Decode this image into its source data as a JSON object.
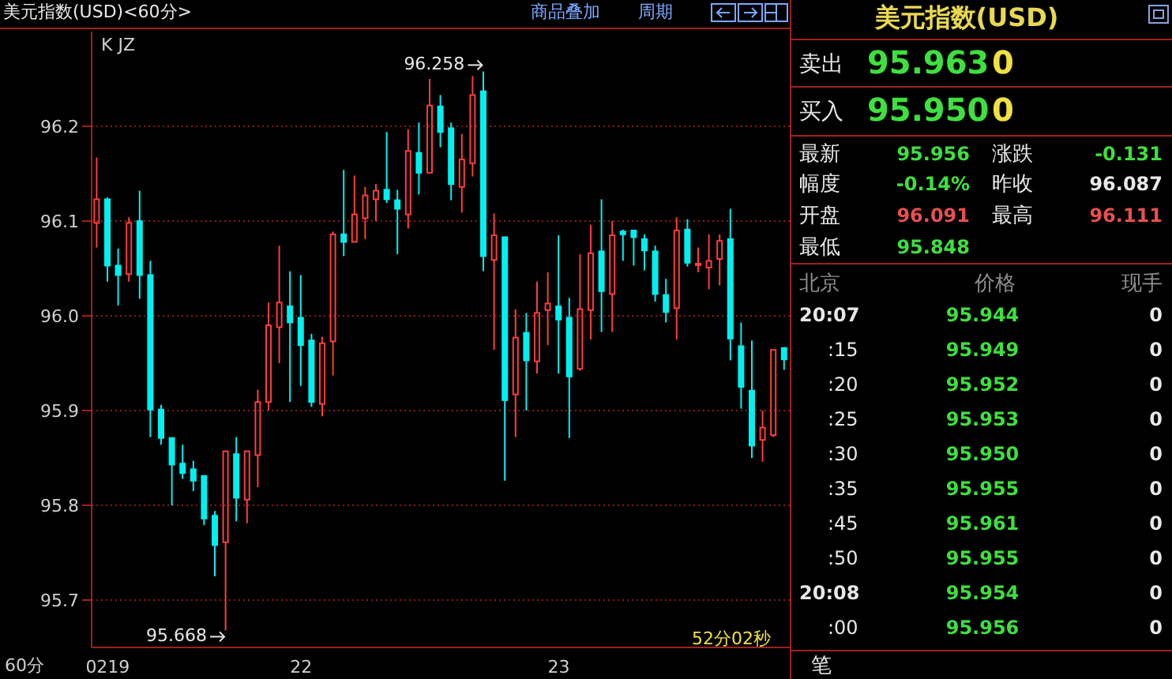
{
  "chart_data": {
    "type": "candlestick",
    "title": "美元指数(USD)<60分>",
    "categories": [
      null,
      "0219",
      null,
      null,
      null,
      null,
      null,
      null,
      null,
      null,
      null,
      null,
      null,
      null,
      null,
      null,
      null,
      null,
      null,
      "22",
      null,
      null,
      null,
      null,
      null,
      null,
      null,
      null,
      null,
      null,
      null,
      null,
      null,
      null,
      null,
      null,
      null,
      null,
      null,
      null,
      null,
      null,
      null,
      "23",
      null,
      null,
      null,
      null,
      null,
      null,
      null,
      null,
      null,
      null,
      null,
      null,
      null,
      null,
      null,
      null,
      null,
      null,
      null,
      null,
      null
    ],
    "ohlc": [
      [
        96.098,
        96.167,
        96.072,
        96.123
      ],
      [
        96.123,
        96.125,
        96.036,
        96.053
      ],
      [
        96.053,
        96.071,
        96.011,
        96.043
      ],
      [
        96.044,
        96.104,
        96.036,
        96.098
      ],
      [
        96.1,
        96.132,
        96.018,
        96.043
      ],
      [
        96.043,
        96.058,
        95.872,
        95.901
      ],
      [
        95.901,
        95.906,
        95.864,
        95.871
      ],
      [
        95.871,
        95.871,
        95.8,
        95.843
      ],
      [
        95.844,
        95.864,
        95.828,
        95.834
      ],
      [
        95.838,
        95.847,
        95.815,
        95.826
      ],
      [
        95.831,
        95.831,
        95.779,
        95.786
      ],
      [
        95.789,
        95.794,
        95.725,
        95.758
      ],
      [
        95.761,
        95.857,
        95.668,
        95.857
      ],
      [
        95.854,
        95.872,
        95.783,
        95.808
      ],
      [
        95.806,
        95.857,
        95.781,
        95.857
      ],
      [
        95.853,
        95.922,
        95.819,
        95.909
      ],
      [
        95.909,
        96.014,
        95.9,
        95.99
      ],
      [
        95.988,
        96.074,
        95.95,
        96.014
      ],
      [
        96.01,
        96.047,
        95.909,
        95.993
      ],
      [
        95.998,
        96.043,
        95.926,
        95.969
      ],
      [
        95.974,
        95.981,
        95.904,
        95.909
      ],
      [
        95.907,
        95.978,
        95.894,
        95.971
      ],
      [
        95.973,
        96.089,
        95.937,
        96.086
      ],
      [
        96.086,
        96.154,
        96.063,
        96.078
      ],
      [
        96.078,
        96.148,
        96.078,
        96.107
      ],
      [
        96.103,
        96.136,
        96.081,
        96.127
      ],
      [
        96.123,
        96.139,
        96.1,
        96.132
      ],
      [
        96.133,
        96.194,
        96.119,
        96.123
      ],
      [
        96.122,
        96.133,
        96.065,
        96.113
      ],
      [
        96.107,
        96.197,
        96.092,
        96.174
      ],
      [
        96.172,
        96.204,
        96.128,
        96.151
      ],
      [
        96.151,
        96.25,
        96.151,
        96.222
      ],
      [
        96.221,
        96.233,
        96.178,
        96.194
      ],
      [
        96.198,
        96.204,
        96.122,
        96.139
      ],
      [
        96.136,
        96.192,
        96.109,
        96.165
      ],
      [
        96.161,
        96.253,
        96.147,
        96.233
      ],
      [
        96.237,
        96.258,
        96.047,
        96.063
      ],
      [
        96.059,
        96.108,
        95.964,
        96.085
      ],
      [
        96.083,
        96.083,
        95.826,
        95.911
      ],
      [
        95.917,
        96.007,
        95.872,
        95.977
      ],
      [
        95.982,
        96.003,
        95.9,
        95.953
      ],
      [
        95.952,
        96.036,
        95.939,
        96.003
      ],
      [
        96.006,
        96.046,
        95.969,
        96.013
      ],
      [
        96.01,
        96.085,
        95.939,
        95.996
      ],
      [
        95.998,
        96.019,
        95.871,
        95.936
      ],
      [
        95.944,
        96.065,
        95.942,
        96.007
      ],
      [
        96.006,
        96.096,
        95.975,
        96.066
      ],
      [
        96.068,
        96.123,
        95.983,
        96.026
      ],
      [
        96.023,
        96.1,
        95.983,
        96.085
      ],
      [
        96.089,
        96.091,
        96.058,
        96.086
      ],
      [
        96.09,
        96.09,
        96.053,
        96.083
      ],
      [
        96.081,
        96.086,
        96.048,
        96.069
      ],
      [
        96.068,
        96.074,
        96.015,
        96.023
      ],
      [
        96.022,
        96.039,
        95.993,
        96.004
      ],
      [
        96.008,
        96.104,
        95.975,
        96.09
      ],
      [
        96.091,
        96.102,
        96.052,
        96.056
      ],
      [
        96.054,
        96.072,
        96.046,
        96.055
      ],
      [
        96.051,
        96.086,
        96.028,
        96.058
      ],
      [
        96.06,
        96.086,
        96.032,
        96.079
      ],
      [
        96.081,
        96.113,
        95.953,
        95.976
      ],
      [
        95.968,
        95.993,
        95.902,
        95.925
      ],
      [
        95.921,
        95.974,
        95.85,
        95.863
      ],
      [
        95.869,
        95.9,
        95.846,
        95.882
      ],
      [
        95.874,
        95.964,
        95.872,
        95.964
      ],
      [
        95.966,
        95.967,
        95.943,
        95.954
      ]
    ],
    "ylim": [
      95.65,
      96.3
    ],
    "yticks": [
      {
        "value": 95.7,
        "label": "95.7"
      },
      {
        "value": 95.8,
        "label": "95.8"
      },
      {
        "value": 95.9,
        "label": "95.9"
      },
      {
        "value": 96,
        "label": "96.0"
      },
      {
        "value": 96.1,
        "label": "96.1"
      },
      {
        "value": 96.2,
        "label": "96.2"
      }
    ],
    "grid": "y",
    "annotations": [
      "K JZ",
      "96.258",
      "95.668",
      "60分",
      "52分02秒",
      "商品叠加",
      "周期",
      "美元指数(USD)",
      "卖出",
      "95.963",
      "0",
      "买入",
      "95.950",
      "0",
      "最新",
      "95.956",
      "涨跌",
      "-0.131",
      "幅度",
      "-0.14%",
      "昨收",
      "96.087",
      "开盘",
      "96.091",
      "最高",
      "96.111",
      "最低",
      "95.848",
      "北京",
      "价格",
      "现手",
      "20:07",
      "95.944",
      "0",
      ":15",
      "95.949",
      "0",
      ":20",
      "95.952",
      "0",
      ":25",
      "95.953",
      "0",
      ":30",
      "95.950",
      "0",
      ":35",
      "95.955",
      "0",
      ":45",
      "95.961",
      "0",
      ":50",
      "95.955",
      "0",
      "20:08",
      "95.954",
      "0",
      ":00",
      "95.956",
      "0",
      "笔"
    ]
  }
}
